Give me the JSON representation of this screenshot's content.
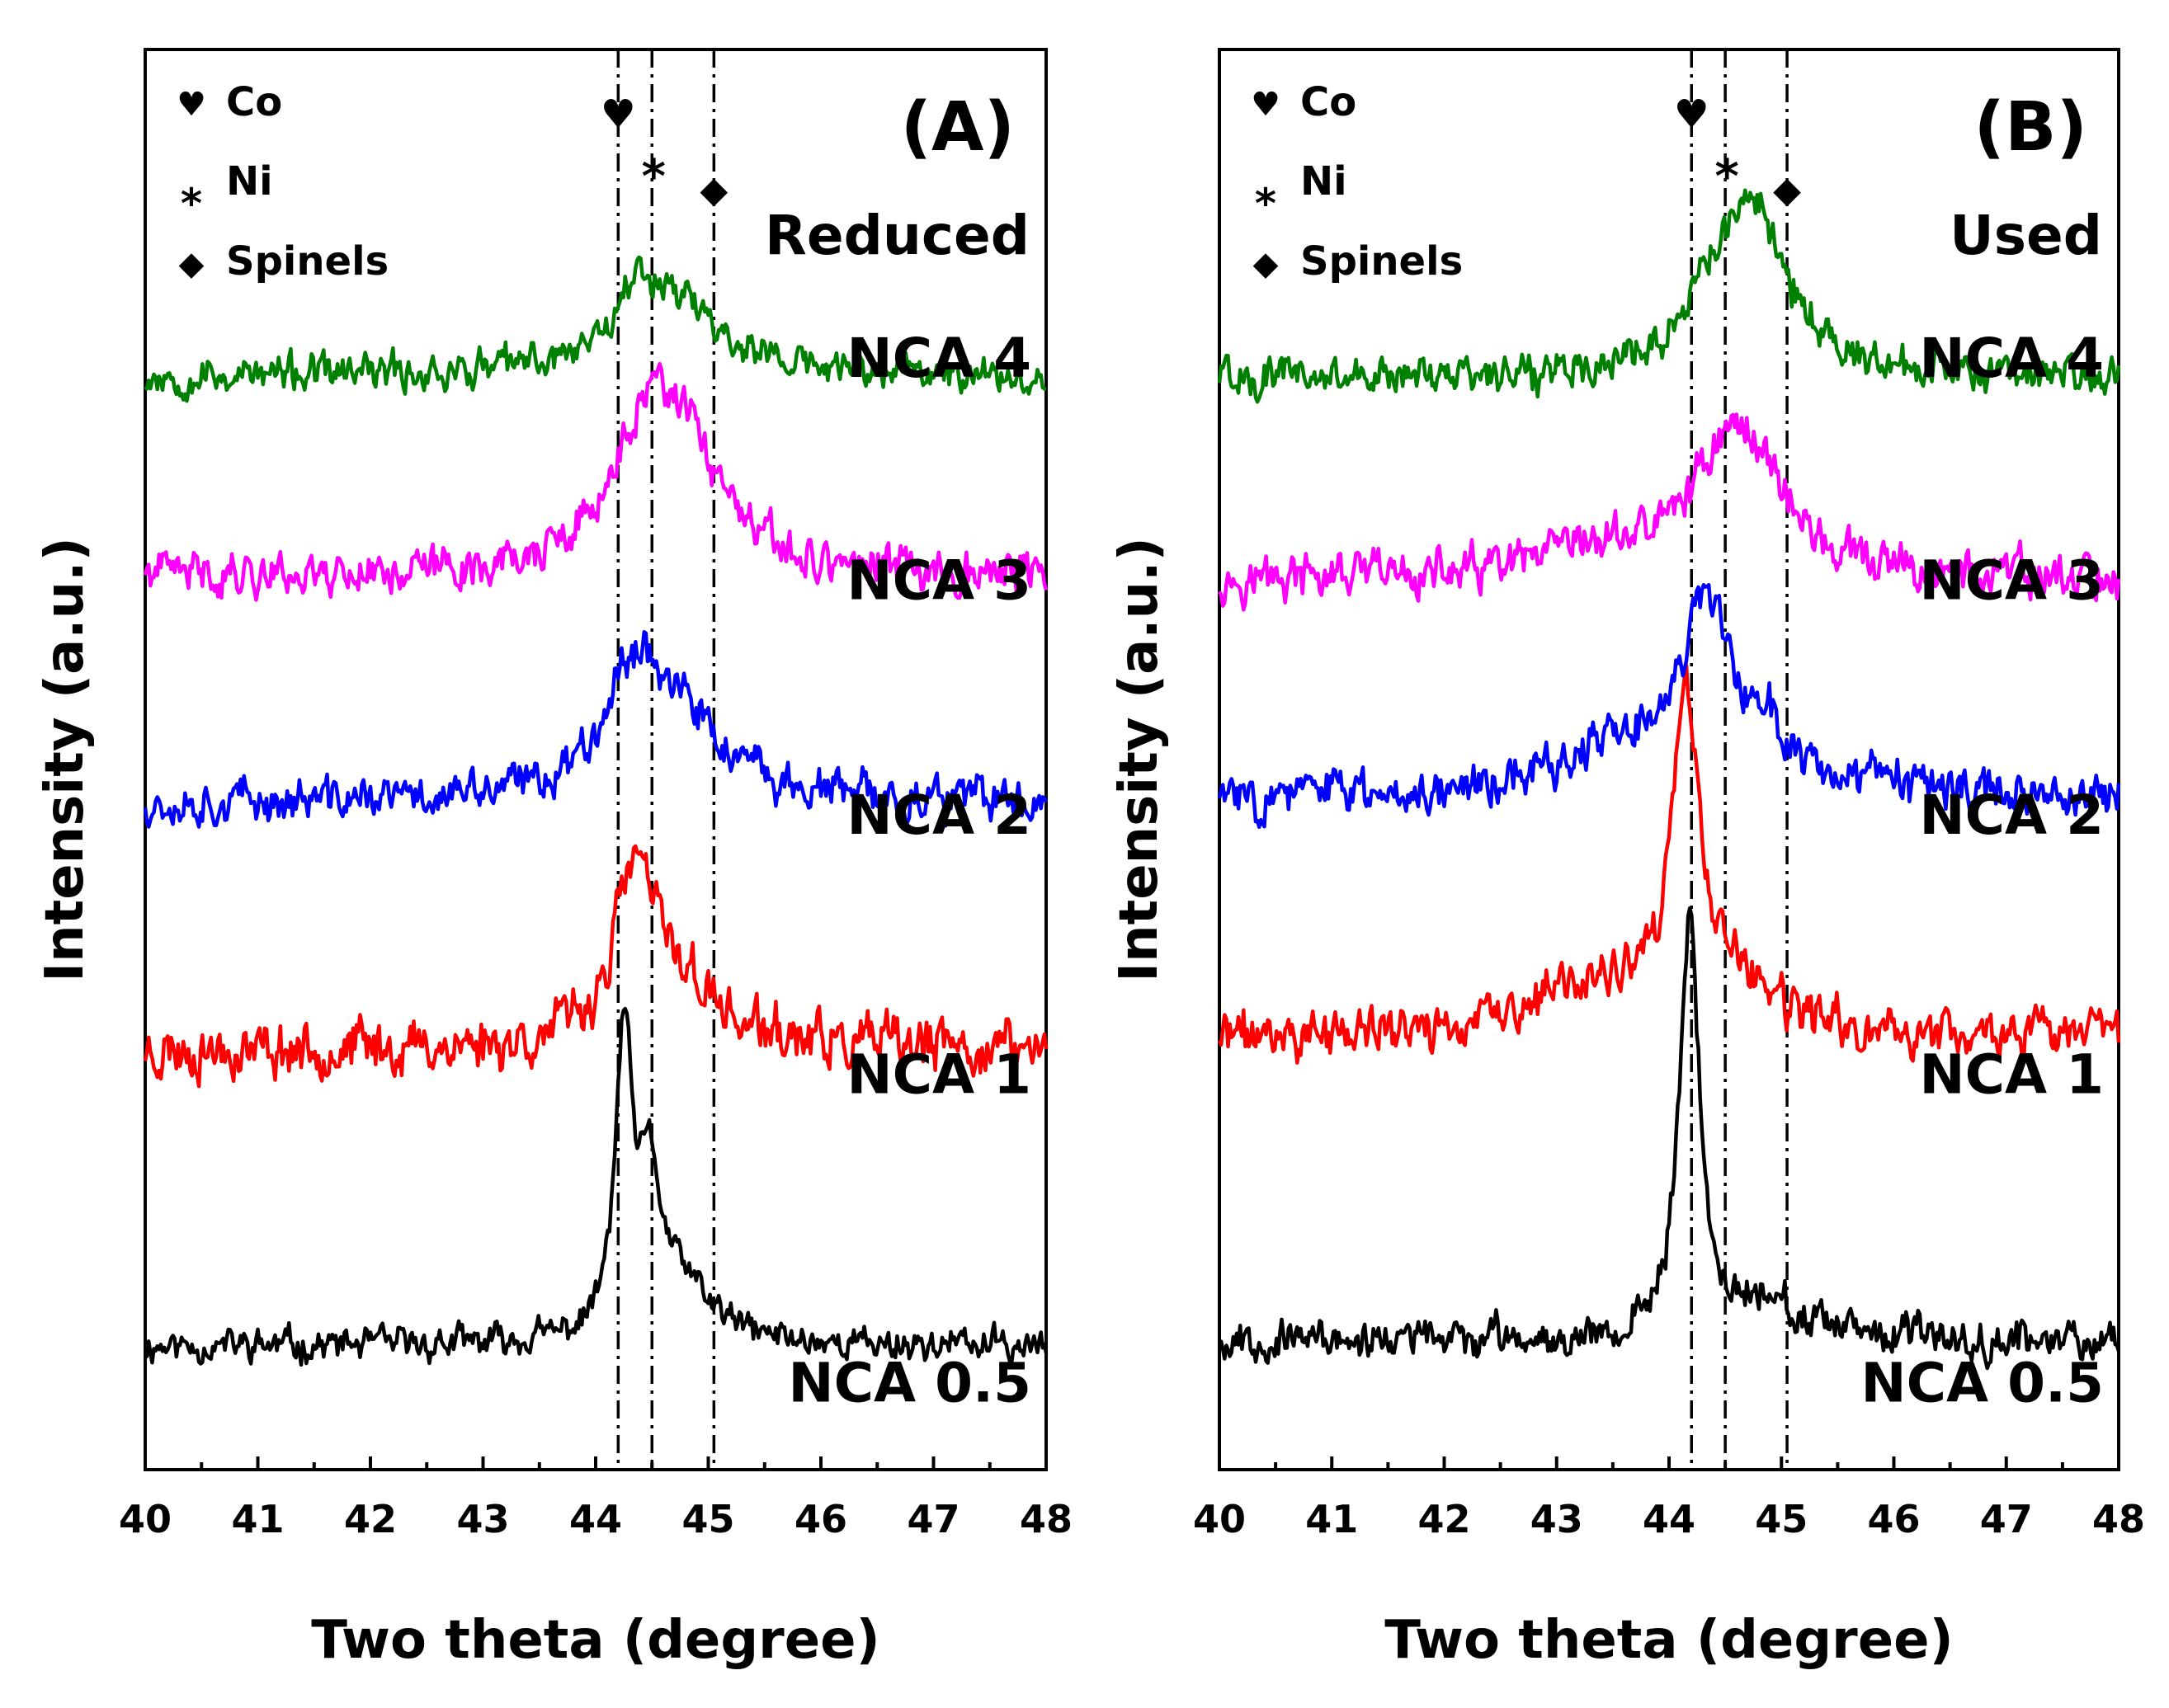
{
  "chart_data": [
    {
      "panel": "(A)",
      "type": "line",
      "state": "Reduced",
      "xlabel": "Two theta (degree)",
      "ylabel": "Intensity (a.u.)",
      "xlim": [
        40,
        48
      ],
      "xticks": [
        40,
        41,
        42,
        43,
        44,
        45,
        46,
        47,
        48
      ],
      "ylim": [
        0,
        11.5
      ],
      "legend": [
        {
          "symbol": "heart",
          "glyph": "♥",
          "label": "Co"
        },
        {
          "symbol": "asterisk",
          "glyph": "*",
          "label": "Ni"
        },
        {
          "symbol": "diamond",
          "glyph": "◆",
          "label": "Spinels"
        }
      ],
      "reference_lines": [
        {
          "phase": "Co",
          "x": 44.2,
          "glyph": "♥"
        },
        {
          "phase": "Ni",
          "x": 44.5,
          "glyph": "*"
        },
        {
          "phase": "Spinels",
          "x": 45.05,
          "glyph": "◆"
        }
      ],
      "series": [
        {
          "name": "NCA 0.5",
          "color": "#000000",
          "baseline": 1.0,
          "noise": 0.12,
          "seed": 11,
          "peaks": [
            {
              "x": 44.25,
              "height": 2.35,
              "width": 0.09
            },
            {
              "x": 44.48,
              "height": 1.1,
              "width": 0.12
            },
            {
              "x": 44.75,
              "height": 0.45,
              "width": 0.35
            }
          ]
        },
        {
          "name": "NCA 1",
          "color": "#ff0000",
          "baseline": 3.4,
          "noise": 0.2,
          "seed": 23,
          "peaks": [
            {
              "x": 44.35,
              "height": 1.35,
              "width": 0.22
            },
            {
              "x": 44.75,
              "height": 0.45,
              "width": 0.4
            }
          ]
        },
        {
          "name": "NCA 2",
          "color": "#0000ff",
          "baseline": 5.4,
          "noise": 0.16,
          "seed": 37,
          "peaks": [
            {
              "x": 44.35,
              "height": 1.05,
              "width": 0.35
            },
            {
              "x": 44.8,
              "height": 0.45,
              "width": 0.45
            }
          ]
        },
        {
          "name": "NCA 3",
          "color": "#ff00ff",
          "baseline": 7.25,
          "noise": 0.16,
          "seed": 41,
          "peaks": [
            {
              "x": 44.45,
              "height": 1.15,
              "width": 0.35
            },
            {
              "x": 44.85,
              "height": 0.75,
              "width": 0.35
            }
          ]
        },
        {
          "name": "NCA 4",
          "color": "#008000",
          "baseline": 8.85,
          "noise": 0.14,
          "seed": 53,
          "peaks": [
            {
              "x": 44.6,
              "height": 0.75,
              "width": 0.5
            },
            {
              "x": 44.3,
              "height": 0.25,
              "width": 0.15
            }
          ]
        }
      ]
    },
    {
      "panel": "(B)",
      "type": "line",
      "state": "Used",
      "xlabel": "Two theta (degree)",
      "ylabel": "Intensity (a.u.)",
      "xlim": [
        40,
        48
      ],
      "xticks": [
        40,
        41,
        42,
        43,
        44,
        45,
        46,
        47,
        48
      ],
      "ylim": [
        0,
        11.5
      ],
      "legend": [
        {
          "symbol": "heart",
          "glyph": "♥",
          "label": "Co"
        },
        {
          "symbol": "asterisk",
          "glyph": "*",
          "label": "Ni"
        },
        {
          "symbol": "diamond",
          "glyph": "◆",
          "label": "Spinels"
        }
      ],
      "reference_lines": [
        {
          "phase": "Co",
          "x": 44.2,
          "glyph": "♥"
        },
        {
          "phase": "Ni",
          "x": 44.5,
          "glyph": "*"
        },
        {
          "phase": "Spinels",
          "x": 45.05,
          "glyph": "◆"
        }
      ],
      "series": [
        {
          "name": "NCA 0.5",
          "color": "#000000",
          "baseline": 1.05,
          "noise": 0.14,
          "seed": 67,
          "peaks": [
            {
              "x": 44.18,
              "height": 3.4,
              "width": 0.11
            },
            {
              "x": 44.85,
              "height": 0.35,
              "width": 0.25
            }
          ]
        },
        {
          "name": "NCA 1",
          "color": "#ff0000",
          "baseline": 3.5,
          "noise": 0.18,
          "seed": 71,
          "peaks": [
            {
              "x": 44.15,
              "height": 2.55,
              "width": 0.15
            },
            {
              "x": 43.3,
              "height": 0.4,
              "width": 0.6
            },
            {
              "x": 44.6,
              "height": 0.35,
              "width": 0.35
            }
          ]
        },
        {
          "name": "NCA 2",
          "color": "#0000ff",
          "baseline": 5.45,
          "noise": 0.17,
          "seed": 83,
          "peaks": [
            {
              "x": 44.3,
              "height": 1.35,
              "width": 0.28
            },
            {
              "x": 43.5,
              "height": 0.3,
              "width": 0.7
            },
            {
              "x": 44.85,
              "height": 0.4,
              "width": 0.35
            }
          ]
        },
        {
          "name": "NCA 3",
          "color": "#ff00ff",
          "baseline": 7.2,
          "noise": 0.17,
          "seed": 97,
          "peaks": [
            {
              "x": 44.5,
              "height": 0.95,
              "width": 0.4
            },
            {
              "x": 44.85,
              "height": 0.5,
              "width": 0.3
            },
            {
              "x": 43.5,
              "height": 0.2,
              "width": 0.6
            }
          ]
        },
        {
          "name": "NCA 4",
          "color": "#008000",
          "baseline": 8.85,
          "noise": 0.15,
          "seed": 101,
          "peaks": [
            {
              "x": 44.75,
              "height": 1.35,
              "width": 0.35
            },
            {
              "x": 44.3,
              "height": 0.35,
              "width": 0.3
            }
          ]
        }
      ]
    }
  ]
}
